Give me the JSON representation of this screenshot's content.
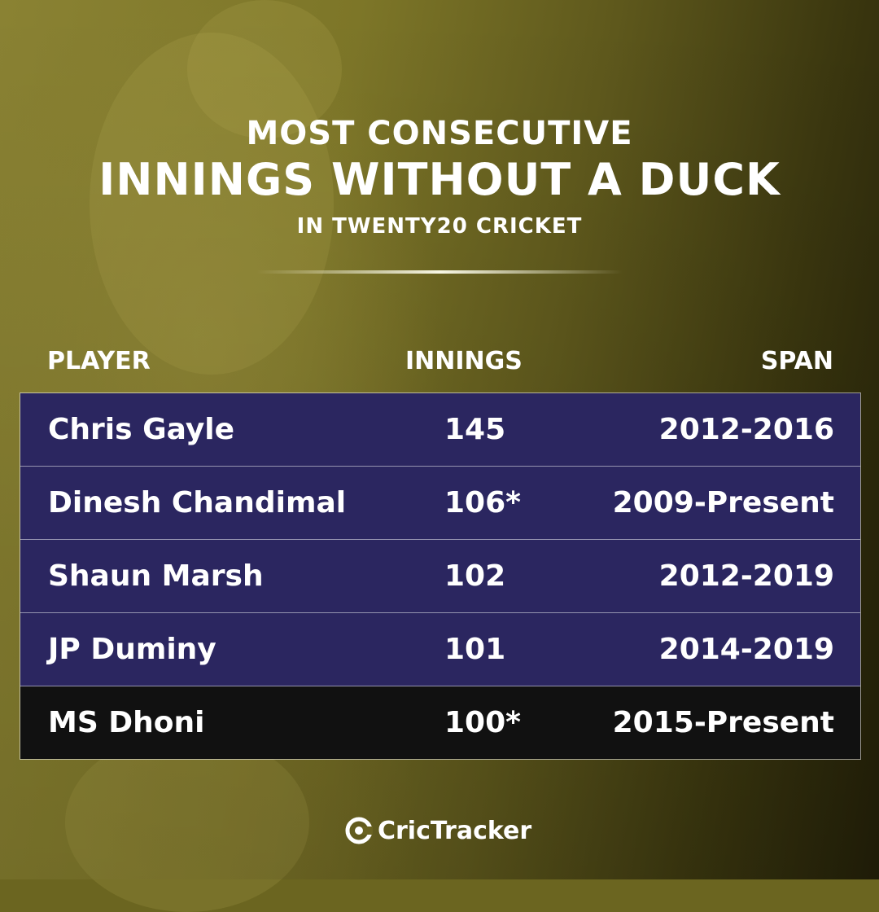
{
  "title": {
    "line1": "MOST CONSECUTIVE",
    "line2": "INNINGS WITHOUT A DUCK",
    "line3": "IN TWENTY20 CRICKET"
  },
  "table": {
    "headers": {
      "player": "PLAYER",
      "innings": "INNINGS",
      "span": "SPAN"
    },
    "rows": [
      {
        "player": "Chris Gayle",
        "innings": "145",
        "span": "2012-2016"
      },
      {
        "player": "Dinesh Chandimal",
        "innings": "106*",
        "span": "2009-Present"
      },
      {
        "player": "Shaun Marsh",
        "innings": "102",
        "span": "2012-2019"
      },
      {
        "player": "JP Duminy",
        "innings": "101",
        "span": "2014-2019"
      },
      {
        "player": "MS Dhoni",
        "innings": "100*",
        "span": "2015-Present"
      }
    ]
  },
  "brand": {
    "name": "CricTracker",
    "logo_icon": "crictracker-logo-icon"
  },
  "colors": {
    "row_background": "#2b2660",
    "highlight_row_background": "#111111",
    "background_tint": "#7d7628",
    "text": "#ffffff"
  }
}
